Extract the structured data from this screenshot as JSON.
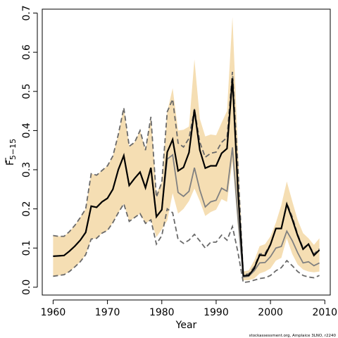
{
  "chart_data": {
    "type": "line",
    "title": "",
    "xlabel": "Year",
    "ylabel": "F",
    "ylabel_subscript": "5−15",
    "xlim": [
      1958,
      2011
    ],
    "ylim": [
      -0.02,
      0.71
    ],
    "xticks": [
      1960,
      1970,
      1980,
      1990,
      2000,
      2010
    ],
    "yticks": [
      0.0,
      0.1,
      0.2,
      0.3,
      0.4,
      0.5,
      0.6,
      0.7
    ],
    "grid": false,
    "legend": "none",
    "credit": "stockassessment.org, Amplaice 3LNO, r2240",
    "colors": {
      "band": "#f5deb3",
      "estimate": "#000000",
      "grey_line": "#808080",
      "dashed": "#696969"
    },
    "x": [
      1960,
      1961,
      1962,
      1963,
      1964,
      1965,
      1966,
      1967,
      1968,
      1969,
      1970,
      1971,
      1972,
      1973,
      1974,
      1975,
      1976,
      1977,
      1978,
      1979,
      1980,
      1981,
      1982,
      1983,
      1984,
      1985,
      1986,
      1987,
      1988,
      1989,
      1990,
      1991,
      1992,
      1993,
      1994,
      1995,
      1996,
      1997,
      1998,
      1999,
      2000,
      2001,
      2002,
      2003,
      2004,
      2005,
      2006,
      2007,
      2008,
      2009
    ],
    "series": [
      {
        "kind": "band",
        "lower": [
          0.028,
          0.03,
          0.032,
          0.04,
          0.052,
          0.065,
          0.083,
          0.123,
          0.125,
          0.138,
          0.145,
          0.165,
          0.19,
          0.213,
          0.168,
          0.178,
          0.188,
          0.163,
          0.172,
          0.128,
          0.148,
          0.17,
          0.24,
          0.188,
          0.2,
          0.22,
          0.252,
          0.22,
          0.182,
          0.192,
          0.198,
          0.225,
          0.218,
          0.322,
          0.155,
          0.018,
          0.018,
          0.022,
          0.035,
          0.04,
          0.048,
          0.068,
          0.075,
          0.125,
          0.085,
          0.058,
          0.045,
          0.04,
          0.038,
          0.04
        ],
        "upper": [
          0.132,
          0.13,
          0.13,
          0.142,
          0.158,
          0.178,
          0.2,
          0.29,
          0.286,
          0.298,
          0.31,
          0.335,
          0.39,
          0.458,
          0.36,
          0.37,
          0.4,
          0.35,
          0.435,
          0.24,
          0.268,
          0.448,
          0.508,
          0.4,
          0.402,
          0.41,
          0.582,
          0.43,
          0.385,
          0.39,
          0.388,
          0.42,
          0.45,
          0.69,
          0.36,
          0.04,
          0.043,
          0.068,
          0.105,
          0.11,
          0.13,
          0.165,
          0.21,
          0.27,
          0.22,
          0.172,
          0.138,
          0.125,
          0.108,
          0.125
        ]
      },
      {
        "kind": "estimate",
        "values": [
          0.079,
          0.08,
          0.081,
          0.092,
          0.105,
          0.12,
          0.14,
          0.207,
          0.204,
          0.218,
          0.227,
          0.25,
          0.3,
          0.336,
          0.26,
          0.278,
          0.294,
          0.254,
          0.305,
          0.18,
          0.198,
          0.345,
          0.377,
          0.297,
          0.306,
          0.344,
          0.453,
          0.35,
          0.304,
          0.31,
          0.31,
          0.342,
          0.354,
          0.533,
          0.25,
          0.029,
          0.03,
          0.048,
          0.082,
          0.081,
          0.109,
          0.15,
          0.15,
          0.212,
          0.174,
          0.132,
          0.097,
          0.11,
          0.081,
          0.095
        ]
      },
      {
        "kind": "grey",
        "values": [
          0.079,
          0.08,
          0.081,
          0.092,
          0.105,
          0.12,
          0.14,
          0.207,
          0.204,
          0.218,
          0.227,
          0.25,
          0.3,
          0.336,
          0.26,
          0.278,
          0.294,
          0.254,
          0.305,
          0.18,
          0.198,
          0.327,
          0.338,
          0.242,
          0.232,
          0.245,
          0.305,
          0.248,
          0.205,
          0.218,
          0.222,
          0.253,
          0.245,
          0.357,
          0.18,
          0.026,
          0.028,
          0.042,
          0.062,
          0.063,
          0.078,
          0.1,
          0.104,
          0.143,
          0.119,
          0.088,
          0.062,
          0.065,
          0.055,
          0.062
        ]
      },
      {
        "kind": "dashed",
        "values": [
          0.028,
          0.03,
          0.032,
          0.04,
          0.052,
          0.065,
          0.083,
          0.123,
          0.125,
          0.138,
          0.145,
          0.165,
          0.19,
          0.213,
          0.168,
          0.178,
          0.188,
          0.163,
          0.172,
          0.11,
          0.132,
          0.2,
          0.19,
          0.122,
          0.112,
          0.12,
          0.135,
          0.118,
          0.1,
          0.115,
          0.115,
          0.133,
          0.12,
          0.155,
          0.09,
          0.012,
          0.014,
          0.018,
          0.022,
          0.024,
          0.03,
          0.042,
          0.05,
          0.068,
          0.055,
          0.04,
          0.03,
          0.026,
          0.024,
          0.03
        ]
      },
      {
        "kind": "dashed",
        "values": [
          0.132,
          0.13,
          0.13,
          0.142,
          0.158,
          0.178,
          0.2,
          0.29,
          0.286,
          0.298,
          0.31,
          0.335,
          0.39,
          0.458,
          0.36,
          0.37,
          0.4,
          0.35,
          0.435,
          0.23,
          0.268,
          0.448,
          0.48,
          0.368,
          0.358,
          0.38,
          0.455,
          0.37,
          0.332,
          0.342,
          0.345,
          0.37,
          0.382,
          0.55,
          0.31,
          0.032,
          0.034,
          0.052,
          0.085,
          0.086,
          0.11,
          0.15,
          0.15,
          0.215,
          0.18,
          0.135,
          0.1,
          0.11,
          0.085,
          0.098
        ]
      }
    ]
  }
}
